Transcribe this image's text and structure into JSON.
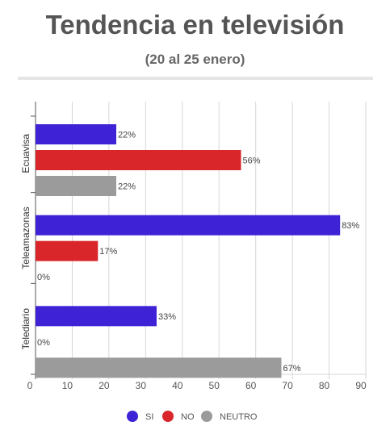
{
  "header": {
    "title": "Tendencia en televisión",
    "subtitle": "(20 al 25 enero)"
  },
  "chart_data": {
    "type": "bar",
    "orientation": "horizontal",
    "categories": [
      "Ecuavisa",
      "Teleamazonas",
      "Telediario"
    ],
    "series": [
      {
        "name": "SI",
        "color": "#3d22d6",
        "values": [
          22,
          83,
          33
        ],
        "labels": [
          "22%",
          "83%",
          "33%"
        ]
      },
      {
        "name": "NO",
        "color": "#d9262b",
        "values": [
          56,
          17,
          0
        ],
        "labels": [
          "56%",
          "17%",
          "0%"
        ]
      },
      {
        "name": "NEUTRO",
        "color": "#9b9b9b",
        "values": [
          22,
          0,
          67
        ],
        "labels": [
          "22%",
          "0%",
          "67%"
        ]
      }
    ],
    "xlim": [
      0,
      90
    ],
    "xticks": [
      0,
      10,
      20,
      30,
      40,
      50,
      60,
      70,
      80,
      90
    ],
    "grid": true,
    "legend_position": "bottom"
  }
}
